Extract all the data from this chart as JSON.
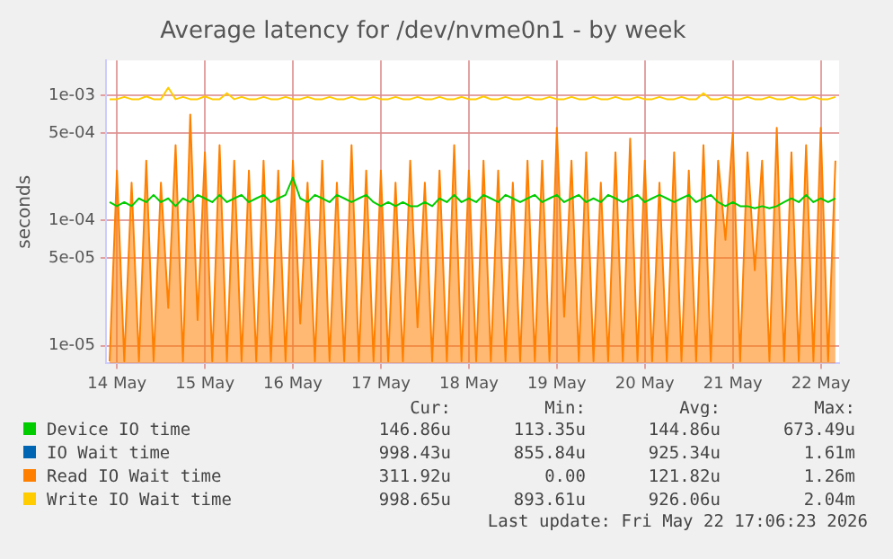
{
  "chart_data": {
    "type": "line",
    "title": "Average latency for /dev/nvme0n1 - by week",
    "ylabel": "seconds",
    "log": "y",
    "grid": true,
    "legend": "bottom",
    "marker": "none",
    "line_style": "solid",
    "xlim": [
      "2026-05-13T21:00",
      "2026-05-22T05:00"
    ],
    "xticks": [
      {
        "value": "2026-05-14T00:00",
        "label": "14 May"
      },
      {
        "value": "2026-05-15T00:00",
        "label": "15 May"
      },
      {
        "value": "2026-05-16T00:00",
        "label": "16 May"
      },
      {
        "value": "2026-05-17T00:00",
        "label": "17 May"
      },
      {
        "value": "2026-05-18T00:00",
        "label": "18 May"
      },
      {
        "value": "2026-05-19T00:00",
        "label": "19 May"
      },
      {
        "value": "2026-05-20T00:00",
        "label": "20 May"
      },
      {
        "value": "2026-05-21T00:00",
        "label": "21 May"
      },
      {
        "value": "2026-05-22T00:00",
        "label": "22 May"
      }
    ],
    "ylim": [
      7.2e-06,
      0.0019
    ],
    "yticks": [
      {
        "value": 1e-05,
        "label": "1e-05"
      },
      {
        "value": 5e-05,
        "label": "5e-05"
      },
      {
        "value": 0.0001,
        "label": "1e-04"
      },
      {
        "value": 0.0005,
        "label": "5e-04"
      },
      {
        "value": 0.001,
        "label": "1e-03"
      }
    ],
    "x": [
      "2026-05-13T22:00",
      "2026-05-14T00:00",
      "2026-05-14T02:00",
      "2026-05-14T04:00",
      "2026-05-14T06:00",
      "2026-05-14T08:00",
      "2026-05-14T10:00",
      "2026-05-14T12:00",
      "2026-05-14T14:00",
      "2026-05-14T16:00",
      "2026-05-14T18:00",
      "2026-05-14T20:00",
      "2026-05-14T22:00",
      "2026-05-15T00:00",
      "2026-05-15T02:00",
      "2026-05-15T04:00",
      "2026-05-15T06:00",
      "2026-05-15T08:00",
      "2026-05-15T10:00",
      "2026-05-15T12:00",
      "2026-05-15T14:00",
      "2026-05-15T16:00",
      "2026-05-15T18:00",
      "2026-05-15T20:00",
      "2026-05-15T22:00",
      "2026-05-16T00:00",
      "2026-05-16T02:00",
      "2026-05-16T04:00",
      "2026-05-16T06:00",
      "2026-05-16T08:00",
      "2026-05-16T10:00",
      "2026-05-16T12:00",
      "2026-05-16T14:00",
      "2026-05-16T16:00",
      "2026-05-16T18:00",
      "2026-05-16T20:00",
      "2026-05-16T22:00",
      "2026-05-17T00:00",
      "2026-05-17T02:00",
      "2026-05-17T04:00",
      "2026-05-17T06:00",
      "2026-05-17T08:00",
      "2026-05-17T10:00",
      "2026-05-17T12:00",
      "2026-05-17T14:00",
      "2026-05-17T16:00",
      "2026-05-17T18:00",
      "2026-05-17T20:00",
      "2026-05-17T22:00",
      "2026-05-18T00:00",
      "2026-05-18T02:00",
      "2026-05-18T04:00",
      "2026-05-18T06:00",
      "2026-05-18T08:00",
      "2026-05-18T10:00",
      "2026-05-18T12:00",
      "2026-05-18T14:00",
      "2026-05-18T16:00",
      "2026-05-18T18:00",
      "2026-05-18T20:00",
      "2026-05-18T22:00",
      "2026-05-19T00:00",
      "2026-05-19T02:00",
      "2026-05-19T04:00",
      "2026-05-19T06:00",
      "2026-05-19T08:00",
      "2026-05-19T10:00",
      "2026-05-19T12:00",
      "2026-05-19T14:00",
      "2026-05-19T16:00",
      "2026-05-19T18:00",
      "2026-05-19T20:00",
      "2026-05-19T22:00",
      "2026-05-20T00:00",
      "2026-05-20T02:00",
      "2026-05-20T04:00",
      "2026-05-20T06:00",
      "2026-05-20T08:00",
      "2026-05-20T10:00",
      "2026-05-20T12:00",
      "2026-05-20T14:00",
      "2026-05-20T16:00",
      "2026-05-20T18:00",
      "2026-05-20T20:00",
      "2026-05-20T22:00",
      "2026-05-21T00:00",
      "2026-05-21T02:00",
      "2026-05-21T04:00",
      "2026-05-21T06:00",
      "2026-05-21T08:00",
      "2026-05-21T10:00",
      "2026-05-21T12:00",
      "2026-05-21T14:00",
      "2026-05-21T16:00",
      "2026-05-21T18:00",
      "2026-05-21T20:00",
      "2026-05-21T22:00",
      "2026-05-22T00:00",
      "2026-05-22T02:00",
      "2026-05-22T04:00"
    ],
    "series": [
      {
        "name": "Device IO time",
        "color": "#00cc00",
        "values": [
          0.00014,
          0.00013,
          0.00014,
          0.00013,
          0.00015,
          0.00014,
          0.00016,
          0.00014,
          0.00015,
          0.00013,
          0.00015,
          0.00014,
          0.00016,
          0.00015,
          0.00014,
          0.00016,
          0.00014,
          0.00015,
          0.00016,
          0.00014,
          0.00015,
          0.00016,
          0.00014,
          0.00015,
          0.00016,
          0.00022,
          0.00015,
          0.00014,
          0.00016,
          0.00015,
          0.00014,
          0.00016,
          0.00015,
          0.00014,
          0.00015,
          0.00016,
          0.00014,
          0.00013,
          0.00014,
          0.00013,
          0.00014,
          0.00013,
          0.00013,
          0.00014,
          0.00013,
          0.00015,
          0.00014,
          0.00016,
          0.00014,
          0.00015,
          0.00014,
          0.00016,
          0.00015,
          0.00014,
          0.00016,
          0.00015,
          0.00014,
          0.00015,
          0.00016,
          0.00014,
          0.00015,
          0.00016,
          0.00014,
          0.00015,
          0.00016,
          0.00014,
          0.00015,
          0.00014,
          0.00016,
          0.00015,
          0.00014,
          0.00015,
          0.00016,
          0.00014,
          0.00015,
          0.00016,
          0.00015,
          0.00014,
          0.00015,
          0.00016,
          0.00014,
          0.00015,
          0.00016,
          0.00014,
          0.00013,
          0.00014,
          0.00013,
          0.00013,
          0.000125,
          0.00013,
          0.000125,
          0.00013,
          0.00014,
          0.00015,
          0.00014,
          0.00016,
          0.00014,
          0.00015,
          0.00014,
          0.00015
        ]
      },
      {
        "name": "IO Wait time",
        "color": "#0066b3",
        "values": [
          null,
          null,
          null,
          null,
          null,
          null,
          null,
          null,
          null,
          null,
          null,
          null,
          null,
          null,
          null,
          null,
          null,
          null,
          null,
          null,
          null,
          null,
          null,
          null,
          null,
          null,
          null,
          null,
          null,
          null,
          null,
          null,
          null,
          null,
          null,
          null,
          null,
          null,
          null,
          null,
          null,
          null,
          null,
          null,
          null,
          null,
          null,
          null,
          null,
          null,
          null,
          null,
          null,
          null,
          null,
          null,
          null,
          null,
          null,
          null,
          null,
          null,
          null,
          null,
          null,
          null,
          null,
          null,
          null,
          null,
          null,
          null,
          null,
          null,
          null,
          null,
          null,
          null,
          null,
          null,
          null,
          null,
          null,
          null,
          null,
          null,
          null,
          null,
          null,
          null,
          null,
          null,
          null,
          null,
          null,
          null,
          null,
          null,
          null,
          null
        ]
      },
      {
        "name": "Read IO Wait time",
        "type": "area",
        "color": "#ff8000",
        "values": [
          7.5e-06,
          0.00025,
          7.5e-06,
          0.0002,
          7.5e-06,
          0.0003,
          7.5e-06,
          0.0002,
          2e-05,
          0.0004,
          7.5e-06,
          0.0007,
          1.6e-05,
          0.00035,
          7.5e-06,
          0.0004,
          7.5e-06,
          0.0003,
          7.5e-06,
          0.00025,
          7.5e-06,
          0.0003,
          7.5e-06,
          0.00025,
          7.5e-06,
          0.0003,
          1.5e-05,
          0.0002,
          7.5e-06,
          0.0003,
          7.5e-06,
          0.0002,
          7.5e-06,
          0.0004,
          7.5e-06,
          0.00025,
          7.5e-06,
          0.00025,
          7.5e-06,
          0.0002,
          7.5e-06,
          0.0003,
          1.4e-05,
          0.0002,
          7.5e-06,
          0.00025,
          7.5e-06,
          0.0004,
          7.5e-06,
          0.00025,
          7.5e-06,
          0.0003,
          7.5e-06,
          0.00025,
          7.5e-06,
          0.0002,
          7.5e-06,
          0.0003,
          7.5e-06,
          0.0003,
          7.5e-06,
          0.00055,
          1.7e-05,
          0.0003,
          7.5e-06,
          0.00035,
          7.5e-06,
          0.0002,
          7.5e-06,
          0.00035,
          7.5e-06,
          0.00045,
          7.5e-06,
          0.0003,
          7.5e-06,
          0.0002,
          7.5e-06,
          0.00035,
          7.5e-06,
          0.00025,
          7.5e-06,
          0.0004,
          7.5e-06,
          0.0003,
          7e-05,
          0.0005,
          7.5e-06,
          0.00035,
          4e-05,
          0.0003,
          7.5e-06,
          0.00055,
          7.5e-06,
          0.00035,
          7.5e-06,
          0.0004,
          7.5e-06,
          0.00055,
          7.5e-06,
          0.0003
        ]
      },
      {
        "name": "Write IO Wait time",
        "color": "#ffcc00",
        "values": [
          0.00093,
          0.00093,
          0.00097,
          0.00093,
          0.00093,
          0.00098,
          0.00093,
          0.00093,
          0.00115,
          0.00093,
          0.00097,
          0.00093,
          0.00093,
          0.00098,
          0.00093,
          0.00093,
          0.00104,
          0.00093,
          0.00097,
          0.00093,
          0.00093,
          0.00097,
          0.00093,
          0.00093,
          0.00097,
          0.00093,
          0.00093,
          0.00097,
          0.00093,
          0.00093,
          0.00097,
          0.00093,
          0.00093,
          0.00097,
          0.00093,
          0.00093,
          0.00097,
          0.00093,
          0.00093,
          0.00097,
          0.00093,
          0.00093,
          0.00097,
          0.00093,
          0.00093,
          0.00097,
          0.00093,
          0.00093,
          0.00097,
          0.00093,
          0.00093,
          0.00098,
          0.00093,
          0.00093,
          0.00097,
          0.00093,
          0.00093,
          0.00097,
          0.00093,
          0.00093,
          0.00097,
          0.00093,
          0.00093,
          0.00097,
          0.00093,
          0.00093,
          0.00097,
          0.00093,
          0.00093,
          0.00097,
          0.00093,
          0.00093,
          0.00097,
          0.00093,
          0.00093,
          0.00097,
          0.00093,
          0.00093,
          0.00097,
          0.00093,
          0.00093,
          0.00104,
          0.00093,
          0.00093,
          0.00097,
          0.00093,
          0.00093,
          0.00097,
          0.00093,
          0.00093,
          0.00097,
          0.00093,
          0.00093,
          0.00097,
          0.00093,
          0.00093,
          0.00097,
          0.00093,
          0.00093,
          0.00097
        ]
      }
    ],
    "annotations": [
      "Cur:",
      "Min:",
      "Avg:",
      "Max:",
      "146.86u",
      "113.35u",
      "144.86u",
      "673.49u",
      "998.43u",
      "855.84u",
      "925.34u",
      "1.61m",
      "311.92u",
      "0.00",
      "121.82u",
      "1.26m",
      "998.65u",
      "893.61u",
      "926.06u",
      "2.04m",
      "Last update: Fri May 22 17:06:23 2026"
    ]
  }
}
